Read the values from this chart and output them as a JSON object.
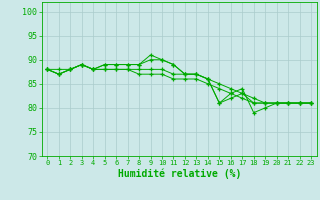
{
  "xlabel": "Humidité relative (%)",
  "ylabel": "",
  "xlim": [
    -0.5,
    23.5
  ],
  "ylim": [
    70,
    102
  ],
  "yticks": [
    70,
    75,
    80,
    85,
    90,
    95,
    100
  ],
  "xticks": [
    0,
    1,
    2,
    3,
    4,
    5,
    6,
    7,
    8,
    9,
    10,
    11,
    12,
    13,
    14,
    15,
    16,
    17,
    18,
    19,
    20,
    21,
    22,
    23
  ],
  "background_color": "#cce8e8",
  "grid_color": "#aacccc",
  "line_color": "#00aa00",
  "marker": "+",
  "lines": [
    [
      88,
      87,
      88,
      89,
      88,
      89,
      89,
      89,
      89,
      91,
      90,
      89,
      87,
      87,
      86,
      81,
      82,
      83,
      81,
      81,
      81,
      81,
      81,
      81
    ],
    [
      88,
      87,
      88,
      89,
      88,
      89,
      89,
      89,
      89,
      90,
      90,
      89,
      87,
      87,
      86,
      81,
      83,
      84,
      79,
      80,
      81,
      81,
      81,
      81
    ],
    [
      88,
      88,
      88,
      89,
      88,
      88,
      88,
      88,
      88,
      88,
      88,
      87,
      87,
      87,
      86,
      85,
      84,
      83,
      82,
      81,
      81,
      81,
      81,
      81
    ],
    [
      88,
      87,
      88,
      89,
      88,
      88,
      88,
      88,
      87,
      87,
      87,
      86,
      86,
      86,
      85,
      84,
      83,
      82,
      81,
      81,
      81,
      81,
      81,
      81
    ]
  ]
}
